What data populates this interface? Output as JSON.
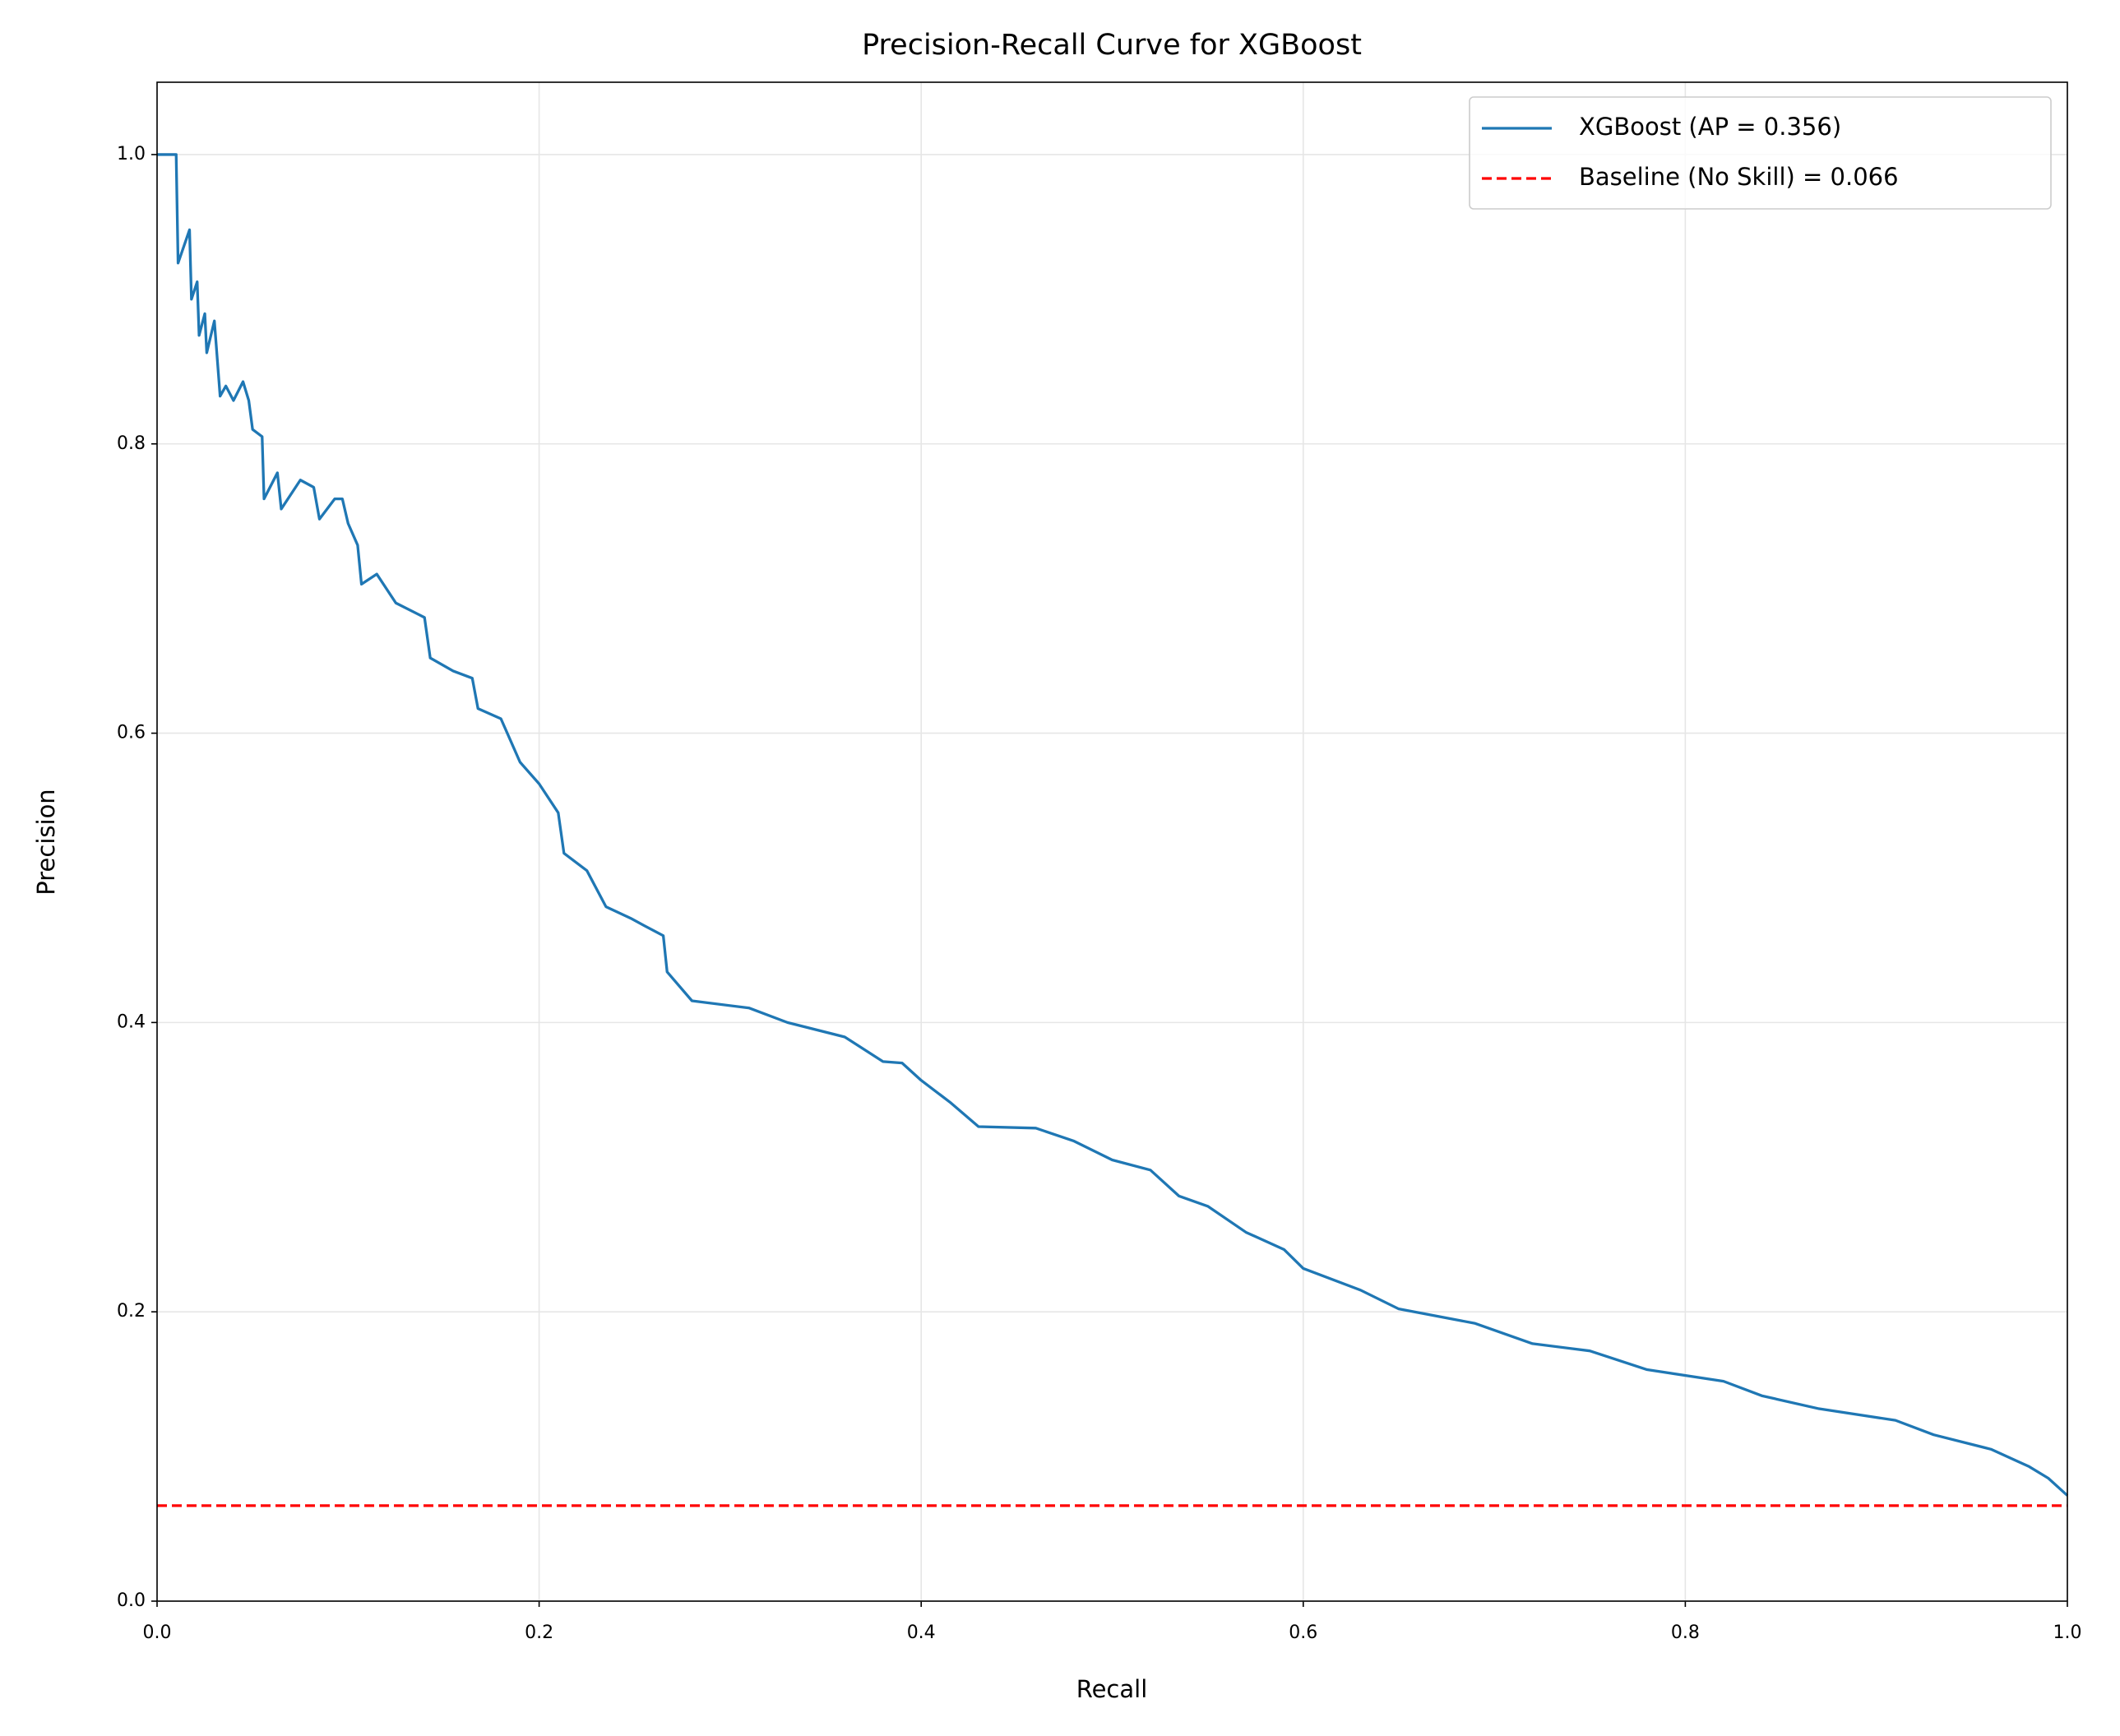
{
  "chart_data": {
    "type": "line",
    "title": "Precision-Recall Curve for XGBoost",
    "xlabel": "Recall",
    "ylabel": "Precision",
    "xlim": [
      0,
      1
    ],
    "ylim": [
      0,
      1.05
    ],
    "xticks": [
      {
        "value": 0,
        "label": "0.0"
      },
      0.2,
      0.4,
      0.6,
      0.8,
      {
        "value": 1,
        "label": "1.0"
      }
    ],
    "yticks": [
      {
        "value": 0,
        "label": "0.0"
      },
      0.2,
      0.4,
      0.6,
      0.8,
      {
        "value": 1,
        "label": "1.0"
      }
    ],
    "grid": true,
    "legend": "upper right",
    "series": [
      {
        "name": "XGBoost (AP = 0.356)",
        "color": "#1f77b4",
        "x": [
          0,
          0.01,
          0.011,
          0.017,
          0.018,
          0.021,
          0.022,
          0.025,
          0.026,
          0.03,
          0.033,
          0.036,
          0.04,
          0.045,
          0.048,
          0.05,
          0.055,
          0.056,
          0.063,
          0.065,
          0.075,
          0.082,
          0.085,
          0.093,
          0.097,
          0.1,
          0.105,
          0.107,
          0.115,
          0.125,
          0.14,
          0.143,
          0.155,
          0.165,
          0.168,
          0.18,
          0.19,
          0.2,
          0.21,
          0.213,
          0.225,
          0.235,
          0.248,
          0.255,
          0.265,
          0.267,
          0.28,
          0.31,
          0.33,
          0.36,
          0.38,
          0.39,
          0.4,
          0.415,
          0.43,
          0.46,
          0.48,
          0.5,
          0.52,
          0.535,
          0.55,
          0.57,
          0.59,
          0.6,
          0.63,
          0.65,
          0.69,
          0.72,
          0.75,
          0.78,
          0.82,
          0.84,
          0.87,
          0.91,
          0.93,
          0.96,
          0.98,
          0.99,
          1.0
        ],
        "values": [
          1.0,
          1.0,
          0.925,
          0.948,
          0.9,
          0.912,
          0.875,
          0.89,
          0.863,
          0.885,
          0.833,
          0.84,
          0.83,
          0.843,
          0.83,
          0.81,
          0.805,
          0.762,
          0.78,
          0.755,
          0.775,
          0.77,
          0.748,
          0.762,
          0.762,
          0.745,
          0.73,
          0.703,
          0.71,
          0.69,
          0.68,
          0.652,
          0.643,
          0.638,
          0.617,
          0.61,
          0.58,
          0.565,
          0.545,
          0.517,
          0.505,
          0.48,
          0.472,
          0.467,
          0.46,
          0.435,
          0.415,
          0.41,
          0.4,
          0.39,
          0.373,
          0.372,
          0.36,
          0.345,
          0.328,
          0.327,
          0.318,
          0.305,
          0.298,
          0.28,
          0.273,
          0.255,
          0.243,
          0.23,
          0.215,
          0.202,
          0.192,
          0.178,
          0.173,
          0.16,
          0.152,
          0.142,
          0.133,
          0.125,
          0.115,
          0.105,
          0.093,
          0.085,
          0.073
        ]
      }
    ],
    "baseline": {
      "name": "Baseline (No Skill) = 0.066",
      "color": "#ff0000",
      "value": 0.066
    }
  }
}
